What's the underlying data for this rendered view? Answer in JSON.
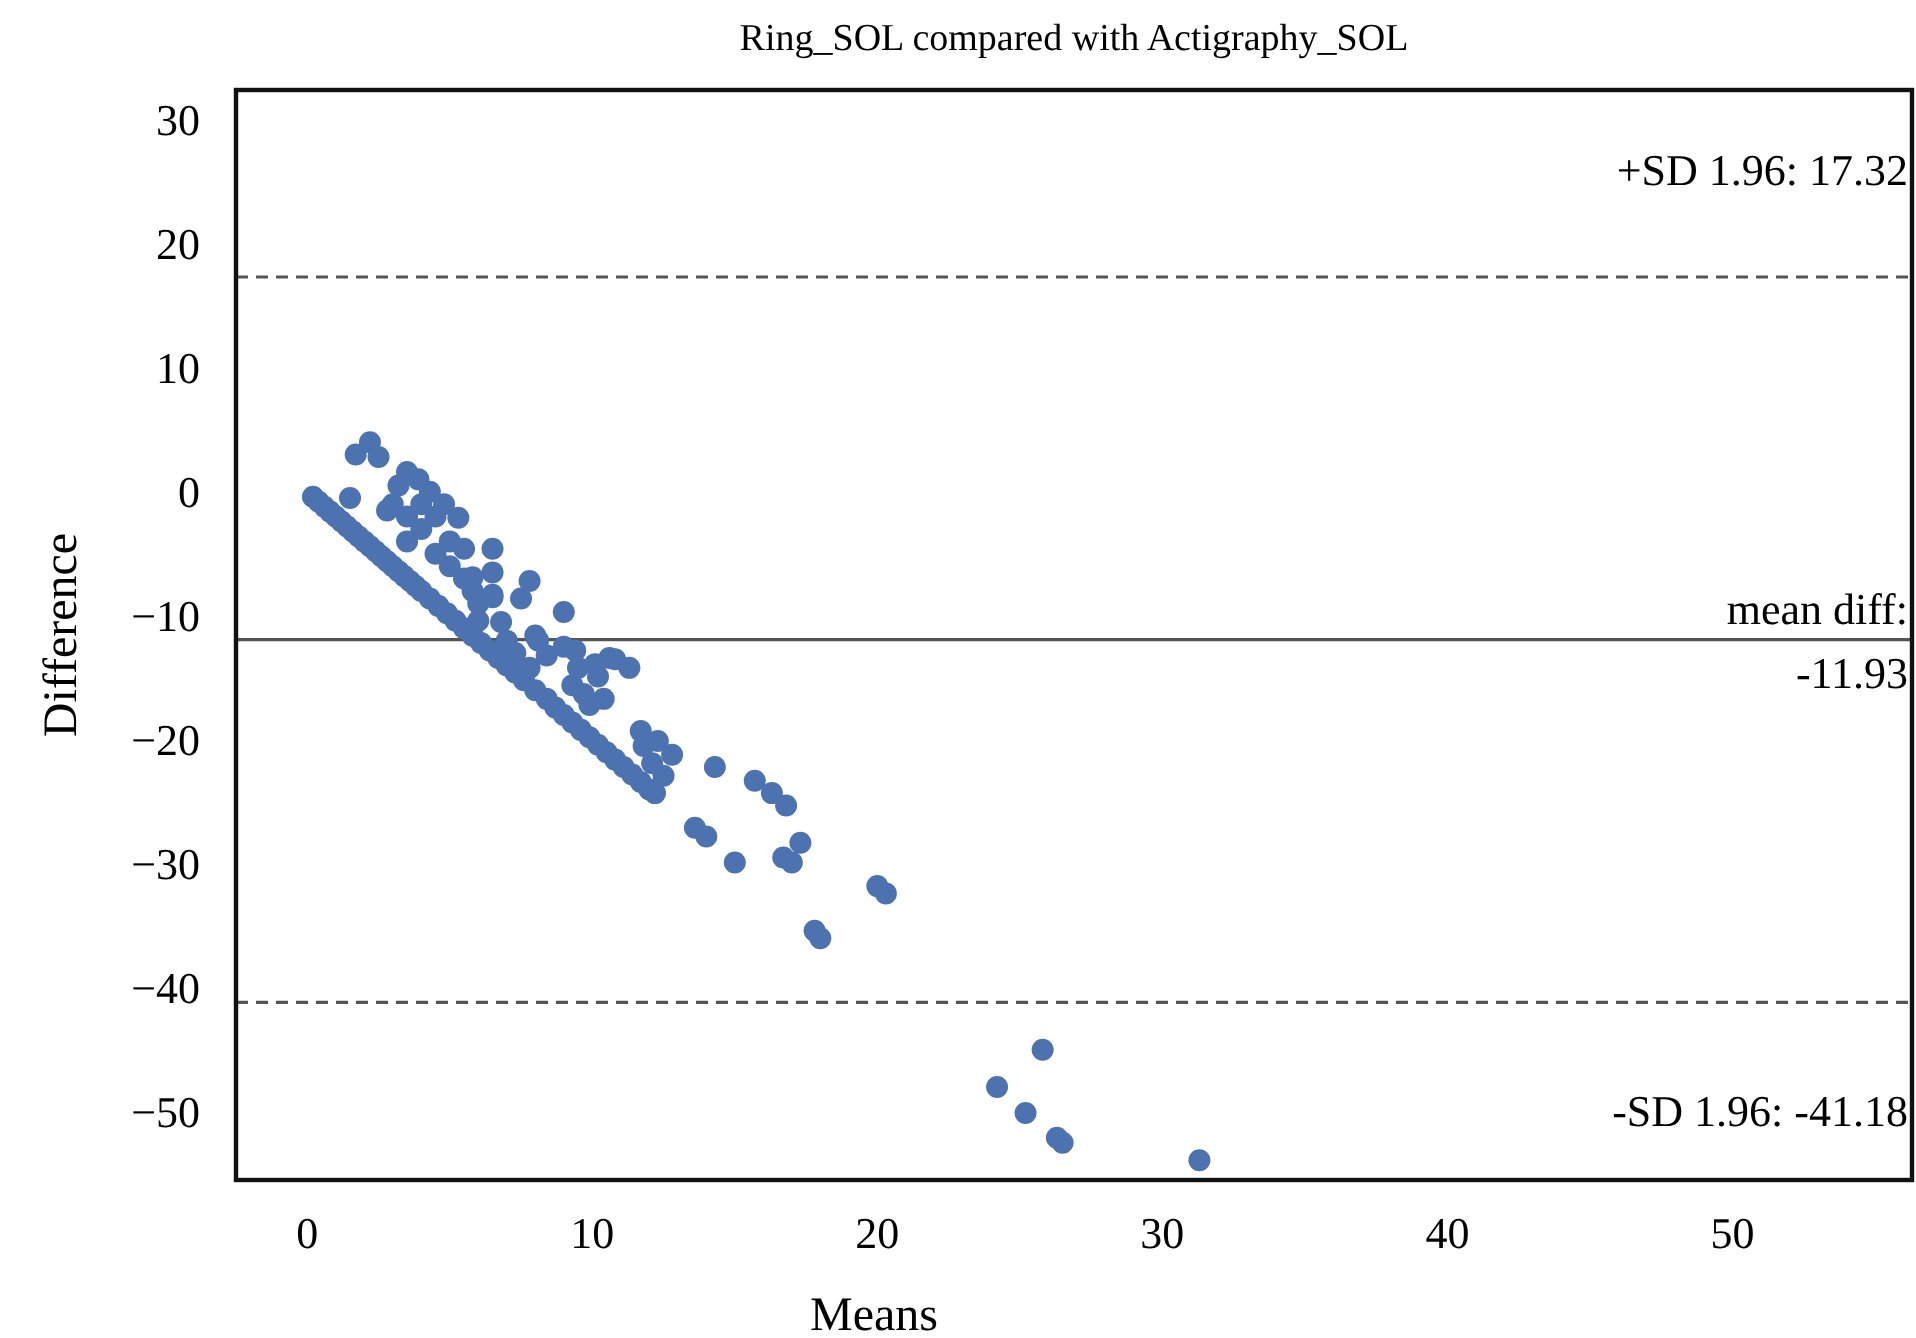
{
  "chart_data": {
    "type": "scatter",
    "title": "Ring_SOL compared with Actigraphy_SOL",
    "xlabel": "Means",
    "ylabel": "Difference",
    "xlim": [
      -2.5,
      56.3
    ],
    "ylim": [
      -55.5,
      32.4
    ],
    "xticks": [
      0,
      10,
      20,
      30,
      40,
      50
    ],
    "yticks": [
      -50,
      -40,
      -30,
      -20,
      -10,
      0,
      10,
      20,
      30
    ],
    "grid": false,
    "marker": "circle",
    "series": [
      {
        "color": "#4c72b0",
        "x": [
          0.2,
          0.4,
          0.6,
          0.8,
          1.0,
          1.2,
          1.4,
          1.6,
          1.8,
          2.0,
          2.2,
          2.4,
          2.6,
          2.8,
          3.0,
          3.2,
          3.4,
          3.6,
          3.8,
          4.0,
          4.3,
          4.6,
          4.9,
          5.2,
          5.5,
          5.8,
          6.1,
          6.4,
          6.7,
          7.0,
          7.3,
          7.6,
          8.0,
          8.7,
          9.0,
          9.3,
          9.6,
          9.9,
          10.2,
          10.5,
          10.8,
          11.1,
          11.4,
          11.7,
          12.0,
          1.5,
          1.7,
          2.2,
          2.5,
          3.5,
          3.9,
          4.3,
          4.8,
          5.3,
          3.0,
          3.5,
          4.0,
          3.2,
          2.8,
          4.0,
          4.5,
          3.5,
          4.5,
          5.0,
          5.0,
          5.5,
          6.0,
          6.5,
          6.8,
          6.5,
          5.8,
          7.0,
          7.3,
          5.5,
          6.5,
          7.8,
          7.5,
          9.0,
          8.0,
          9.4,
          8.4,
          10.6,
          11.3,
          10.4,
          9.9,
          11.7,
          12.3,
          12.8,
          12.5,
          12.2,
          14.3,
          15.7,
          16.3,
          16.8,
          13.6,
          14.0,
          15.0,
          16.7,
          17.0,
          17.3,
          20.0,
          20.3,
          17.8,
          18.0,
          5.8,
          6.5,
          6.0,
          8.1,
          8.4,
          7.8,
          9.0,
          9.5,
          9.3,
          9.7,
          10.1,
          10.8,
          10.2,
          12.1,
          11.8,
          25.8,
          24.2,
          25.2,
          26.3,
          26.5,
          31.3
        ],
        "values": [
          -0.4,
          -0.8,
          -1.2,
          -1.6,
          -2.0,
          -2.4,
          -2.8,
          -3.2,
          -3.6,
          -4.0,
          -4.4,
          -4.8,
          -5.2,
          -5.6,
          -6.0,
          -6.4,
          -6.8,
          -7.2,
          -7.6,
          -8.0,
          -8.6,
          -9.2,
          -9.8,
          -10.4,
          -11.0,
          -11.6,
          -12.2,
          -12.8,
          -13.4,
          -14.0,
          -14.6,
          -15.2,
          -16.0,
          -17.4,
          -18.0,
          -18.6,
          -19.2,
          -19.8,
          -20.4,
          -21.0,
          -21.6,
          -22.2,
          -22.8,
          -23.4,
          -24.0,
          -0.5,
          3.0,
          4.0,
          2.8,
          1.6,
          1.0,
          0.0,
          -1.0,
          -2.1,
          -1.0,
          -2.0,
          -3.0,
          0.5,
          -1.5,
          -1.0,
          -2.0,
          -4.0,
          -5.0,
          -4.0,
          -6.0,
          -7.0,
          -9.0,
          -8.5,
          -10.5,
          -6.5,
          -8.0,
          -12.0,
          -13.0,
          -4.6,
          -4.6,
          -7.2,
          -8.6,
          -9.7,
          -11.6,
          -12.8,
          -16.7,
          -13.4,
          -14.2,
          -16.7,
          -17.2,
          -19.3,
          -20.1,
          -21.2,
          -22.9,
          -24.3,
          -22.2,
          -23.3,
          -24.3,
          -25.3,
          -27.1,
          -27.8,
          -29.9,
          -29.5,
          -29.9,
          -28.3,
          -31.8,
          -32.4,
          -35.4,
          -36.0,
          -6.9,
          -8.3,
          -10.4,
          -12.0,
          -13.2,
          -14.2,
          -12.5,
          -14.2,
          -15.6,
          -16.3,
          -13.9,
          -13.5,
          -14.9,
          -21.9,
          -20.5,
          -45.0,
          -48.0,
          -50.1,
          -52.1,
          -52.5,
          -53.9
        ]
      }
    ],
    "ref_lines": [
      {
        "axis": "y",
        "value": 17.32,
        "label": "+SD 1.96: 17.32",
        "color": "#555555",
        "line_style": "dashed"
      },
      {
        "axis": "y",
        "value": -11.93,
        "label": "mean diff:\n-11.93",
        "color": "#555555",
        "line_style": "solid"
      },
      {
        "axis": "y",
        "value": -41.18,
        "label": "-SD 1.96: -41.18",
        "color": "#555555",
        "line_style": "dashed"
      }
    ]
  }
}
